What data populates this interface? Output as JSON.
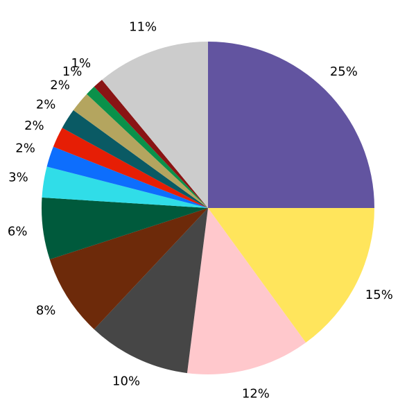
{
  "chart_data": {
    "type": "pie",
    "values": [
      25,
      15,
      12,
      10,
      8,
      6,
      3,
      2,
      2,
      2,
      2,
      1,
      1,
      11
    ],
    "value_labels": [
      "25%",
      "15%",
      "12%",
      "10%",
      "8%",
      "6%",
      "3%",
      "2%",
      "2%",
      "2%",
      "2%",
      "1%",
      "1%",
      "11%"
    ],
    "colors": [
      "#6254a0",
      "#ffe55c",
      "#ffc8cc",
      "#464646",
      "#6d2a0a",
      "#005a3c",
      "#30dde8",
      "#0d6efd",
      "#e61e05",
      "#0a5a64",
      "#b4a55f",
      "#0a914a",
      "#8a1414",
      "#cccccc"
    ],
    "start_angle": 90,
    "direction": "clockwise"
  }
}
